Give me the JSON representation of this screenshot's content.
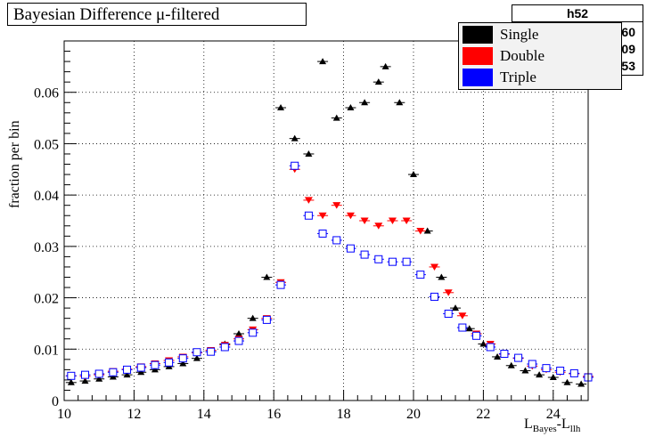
{
  "title": "Bayesian Difference μ-filtered",
  "stats": {
    "title": "h52",
    "rows": [
      "60",
      "09",
      "53"
    ]
  },
  "legend": [
    {
      "label": "Single",
      "color": "#000000"
    },
    {
      "label": "Double",
      "color": "#ff0000"
    },
    {
      "label": "Triple",
      "color": "#0000ff"
    }
  ],
  "axes": {
    "ylabel": "fraction per bin",
    "xlabel_main": "L",
    "xlabel_sub1": "Bayes",
    "xlabel_dash": "-L",
    "xlabel_sub2": "llh"
  },
  "chart_data": {
    "type": "scatter",
    "title": "Bayesian Difference μ-filtered",
    "xlabel": "L_Bayes-L_llh",
    "ylabel": "fraction per bin",
    "xlim": [
      10,
      25
    ],
    "ylim": [
      0,
      0.07
    ],
    "grid": true,
    "legend_position": "top-right",
    "x_ticks": [
      10,
      12,
      14,
      16,
      18,
      20,
      22,
      24
    ],
    "y_ticks": [
      0,
      0.01,
      0.02,
      0.03,
      0.04,
      0.05,
      0.06
    ],
    "series": [
      {
        "name": "Single",
        "marker": "triangle-up",
        "color": "#000000",
        "points": [
          [
            10.2,
            0.0035
          ],
          [
            10.6,
            0.0038
          ],
          [
            11.0,
            0.0042
          ],
          [
            11.4,
            0.0046
          ],
          [
            11.8,
            0.005
          ],
          [
            12.2,
            0.0055
          ],
          [
            12.6,
            0.006
          ],
          [
            13.0,
            0.0066
          ],
          [
            13.4,
            0.0072
          ],
          [
            13.8,
            0.0082
          ],
          [
            14.2,
            0.0095
          ],
          [
            14.6,
            0.011
          ],
          [
            15.0,
            0.013
          ],
          [
            15.4,
            0.016
          ],
          [
            15.8,
            0.024
          ],
          [
            16.2,
            0.057
          ],
          [
            16.6,
            0.051
          ],
          [
            17.0,
            0.048
          ],
          [
            17.4,
            0.066
          ],
          [
            17.8,
            0.055
          ],
          [
            18.2,
            0.057
          ],
          [
            18.6,
            0.058
          ],
          [
            19.0,
            0.062
          ],
          [
            19.2,
            0.065
          ],
          [
            19.6,
            0.058
          ],
          [
            20.0,
            0.044
          ],
          [
            20.4,
            0.033
          ],
          [
            20.8,
            0.024
          ],
          [
            21.2,
            0.018
          ],
          [
            21.6,
            0.014
          ],
          [
            22.0,
            0.011
          ],
          [
            22.4,
            0.0085
          ],
          [
            22.8,
            0.0068
          ],
          [
            23.2,
            0.0058
          ],
          [
            23.6,
            0.005
          ],
          [
            24.0,
            0.0045
          ],
          [
            24.4,
            0.0035
          ],
          [
            24.8,
            0.0032
          ]
        ]
      },
      {
        "name": "Double",
        "marker": "triangle-down",
        "color": "#ff0000",
        "points": [
          [
            10.2,
            0.0048
          ],
          [
            10.6,
            0.0047
          ],
          [
            11.0,
            0.005
          ],
          [
            11.4,
            0.0057
          ],
          [
            11.8,
            0.0061
          ],
          [
            12.2,
            0.0066
          ],
          [
            12.6,
            0.0072
          ],
          [
            13.0,
            0.0078
          ],
          [
            13.4,
            0.0085
          ],
          [
            13.8,
            0.0093
          ],
          [
            14.2,
            0.0098
          ],
          [
            14.6,
            0.0108
          ],
          [
            15.0,
            0.012
          ],
          [
            15.4,
            0.0138
          ],
          [
            15.8,
            0.016
          ],
          [
            16.2,
            0.023
          ],
          [
            16.6,
            0.045
          ],
          [
            17.0,
            0.039
          ],
          [
            17.4,
            0.036
          ],
          [
            17.8,
            0.038
          ],
          [
            18.2,
            0.036
          ],
          [
            18.6,
            0.035
          ],
          [
            19.0,
            0.034
          ],
          [
            19.4,
            0.035
          ],
          [
            19.8,
            0.035
          ],
          [
            20.2,
            0.033
          ],
          [
            20.6,
            0.026
          ],
          [
            21.0,
            0.021
          ],
          [
            21.4,
            0.0165
          ],
          [
            21.8,
            0.013
          ],
          [
            22.2,
            0.011
          ],
          [
            22.6,
            0.009
          ],
          [
            23.0,
            0.0082
          ],
          [
            23.4,
            0.0067
          ],
          [
            23.8,
            0.006
          ],
          [
            24.2,
            0.0055
          ],
          [
            24.6,
            0.0052
          ],
          [
            25.0,
            0.0047
          ]
        ]
      },
      {
        "name": "Triple",
        "marker": "square-open",
        "color": "#0000ff",
        "points": [
          [
            10.2,
            0.0048
          ],
          [
            10.6,
            0.005
          ],
          [
            11.0,
            0.0052
          ],
          [
            11.4,
            0.0055
          ],
          [
            11.8,
            0.006
          ],
          [
            12.2,
            0.0064
          ],
          [
            12.6,
            0.0069
          ],
          [
            13.0,
            0.0074
          ],
          [
            13.4,
            0.0082
          ],
          [
            13.8,
            0.0094
          ],
          [
            14.2,
            0.0095
          ],
          [
            14.6,
            0.0104
          ],
          [
            15.0,
            0.0116
          ],
          [
            15.4,
            0.0132
          ],
          [
            15.8,
            0.0157
          ],
          [
            16.2,
            0.0225
          ],
          [
            16.6,
            0.0457
          ],
          [
            17.0,
            0.036
          ],
          [
            17.4,
            0.0325
          ],
          [
            17.8,
            0.0312
          ],
          [
            18.2,
            0.0296
          ],
          [
            18.6,
            0.0284
          ],
          [
            19.0,
            0.0275
          ],
          [
            19.4,
            0.027
          ],
          [
            19.8,
            0.027
          ],
          [
            20.2,
            0.0245
          ],
          [
            20.6,
            0.0202
          ],
          [
            21.0,
            0.0169
          ],
          [
            21.4,
            0.0142
          ],
          [
            21.8,
            0.0126
          ],
          [
            22.2,
            0.0104
          ],
          [
            22.6,
            0.0091
          ],
          [
            23.0,
            0.0083
          ],
          [
            23.4,
            0.0071
          ],
          [
            23.8,
            0.0063
          ],
          [
            24.2,
            0.0058
          ],
          [
            24.6,
            0.0053
          ],
          [
            25.0,
            0.0045
          ]
        ]
      }
    ]
  }
}
